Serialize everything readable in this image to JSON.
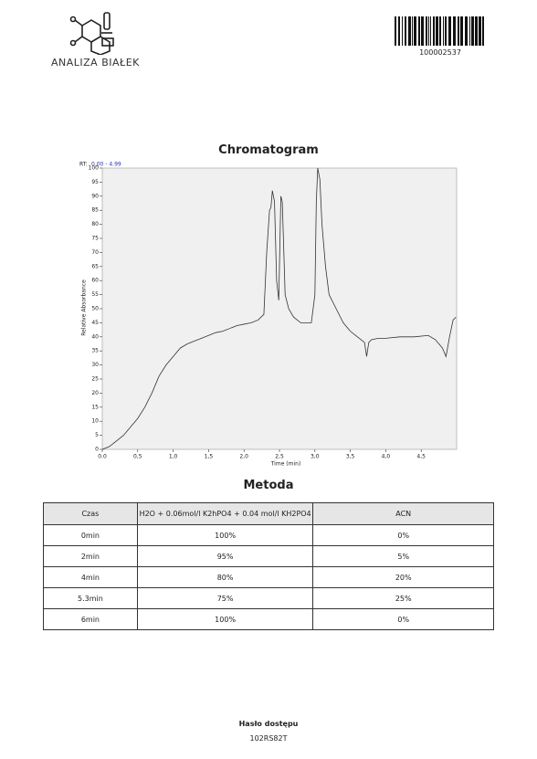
{
  "header": {
    "brand": "ANALIZA BIAŁEK",
    "barcode_number": "100002537"
  },
  "chart_data": {
    "type": "line",
    "title": "Chromatogram",
    "annotation": {
      "label": "RT:",
      "range": "0.00 - 4.99"
    },
    "x_label": "Time (min)",
    "y_label": "Relative Absorbance",
    "x": [
      0,
      0.1,
      0.2,
      0.3,
      0.4,
      0.5,
      0.6,
      0.7,
      0.8,
      0.9,
      1.0,
      1.1,
      1.2,
      1.3,
      1.4,
      1.5,
      1.6,
      1.7,
      1.8,
      1.9,
      2.0,
      2.1,
      2.2,
      2.28,
      2.32,
      2.36,
      2.38,
      2.4,
      2.43,
      2.46,
      2.49,
      2.52,
      2.54,
      2.58,
      2.63,
      2.7,
      2.8,
      2.9,
      2.95,
      3.0,
      3.02,
      3.04,
      3.07,
      3.1,
      3.15,
      3.2,
      3.3,
      3.4,
      3.5,
      3.6,
      3.7,
      3.73,
      3.76,
      3.8,
      3.9,
      4.0,
      4.2,
      4.4,
      4.6,
      4.7,
      4.8,
      4.85,
      4.9,
      4.95,
      4.99
    ],
    "series": [
      {
        "color": "#333333",
        "values": [
          0,
          1,
          3,
          5,
          8,
          11,
          15,
          20,
          26,
          30,
          33,
          36,
          37.5,
          38.5,
          39.5,
          40.5,
          41.5,
          42,
          43,
          44,
          44.5,
          45,
          46,
          48,
          70,
          85,
          86,
          92,
          88,
          60,
          53,
          90,
          88,
          55,
          50,
          47,
          45,
          45,
          45,
          55,
          88,
          100,
          96,
          80,
          65,
          55,
          50,
          45,
          42,
          40,
          38,
          33,
          38,
          39,
          39.5,
          39.5,
          40,
          40,
          40.5,
          39,
          36,
          33,
          40,
          46,
          47
        ]
      }
    ],
    "xlim": [
      0,
      5.0
    ],
    "ylim": [
      0,
      100
    ],
    "xticks": [
      {
        "value": 0,
        "label": "0.0"
      },
      {
        "value": 0.5,
        "label": "0,5"
      },
      {
        "value": 1,
        "label": "1,0"
      },
      {
        "value": 1.5,
        "label": "1,5"
      },
      {
        "value": 2,
        "label": "2,0"
      },
      {
        "value": 2.5,
        "label": "2,5"
      },
      {
        "value": 3,
        "label": "3,0"
      },
      {
        "value": 3.5,
        "label": "3,5"
      },
      {
        "value": 4,
        "label": "4,0"
      },
      {
        "value": 4.5,
        "label": "4,5"
      }
    ],
    "yticks": [
      0,
      5,
      10,
      15,
      20,
      25,
      30,
      35,
      40,
      45,
      50,
      55,
      60,
      65,
      70,
      75,
      80,
      85,
      90,
      95,
      100
    ],
    "background": "#f0f0f0"
  },
  "table": {
    "title": "Metoda",
    "columns": [
      "Czas",
      "H2O + 0.06mol/l K2hPO4 + 0.04 mol/l KH2PO4",
      "ACN"
    ],
    "rows": [
      [
        "0min",
        "100%",
        "0%"
      ],
      [
        "2min",
        "95%",
        "5%"
      ],
      [
        "4min",
        "80%",
        "20%"
      ],
      [
        "5.3min",
        "75%",
        "25%"
      ],
      [
        "6min",
        "100%",
        "0%"
      ]
    ]
  },
  "footer": {
    "label": "Hasło dostępu",
    "password": "102RS82T"
  }
}
